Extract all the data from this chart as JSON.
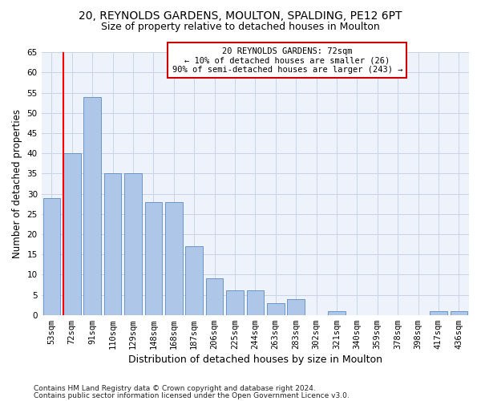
{
  "title1": "20, REYNOLDS GARDENS, MOULTON, SPALDING, PE12 6PT",
  "title2": "Size of property relative to detached houses in Moulton",
  "xlabel": "Distribution of detached houses by size in Moulton",
  "ylabel": "Number of detached properties",
  "categories": [
    "53sqm",
    "72sqm",
    "91sqm",
    "110sqm",
    "129sqm",
    "148sqm",
    "168sqm",
    "187sqm",
    "206sqm",
    "225sqm",
    "244sqm",
    "263sqm",
    "283sqm",
    "302sqm",
    "321sqm",
    "340sqm",
    "359sqm",
    "378sqm",
    "398sqm",
    "417sqm",
    "436sqm"
  ],
  "values": [
    29,
    40,
    54,
    35,
    35,
    28,
    28,
    17,
    9,
    6,
    6,
    3,
    4,
    0,
    1,
    0,
    0,
    0,
    0,
    1,
    1
  ],
  "bar_color": "#aec6e8",
  "bar_edge_color": "#5a8abf",
  "red_line_index": 1,
  "annotation_line1": "20 REYNOLDS GARDENS: 72sqm",
  "annotation_line2": "← 10% of detached houses are smaller (26)",
  "annotation_line3": "90% of semi-detached houses are larger (243) →",
  "annotation_box_facecolor": "#ffffff",
  "annotation_box_edgecolor": "#cc0000",
  "ylim": [
    0,
    65
  ],
  "yticks": [
    0,
    5,
    10,
    15,
    20,
    25,
    30,
    35,
    40,
    45,
    50,
    55,
    60,
    65
  ],
  "footer1": "Contains HM Land Registry data © Crown copyright and database right 2024.",
  "footer2": "Contains public sector information licensed under the Open Government Licence v3.0.",
  "grid_color": "#c8d4e8",
  "background_color": "#eef2fa",
  "title1_fontsize": 10,
  "title2_fontsize": 9,
  "bar_width": 0.85,
  "annot_fontsize": 7.5,
  "ylabel_fontsize": 8.5,
  "xlabel_fontsize": 9,
  "tick_fontsize": 7.5
}
